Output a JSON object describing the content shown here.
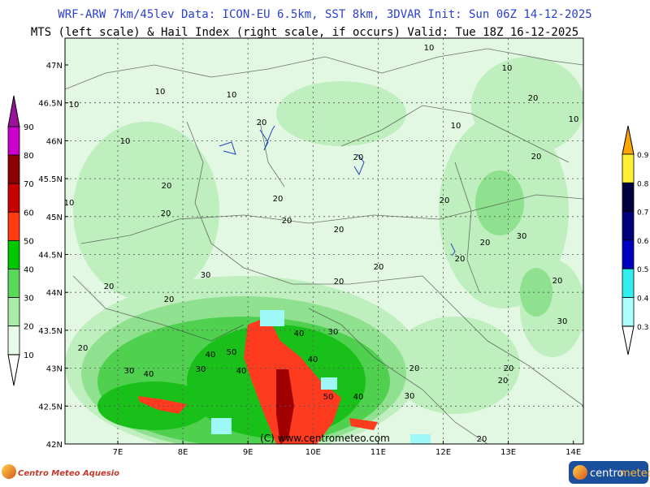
{
  "header": {
    "line1": "WRF-ARW 7km/45lev  Data: ICON-EU 6.5km, SST 8km, 3DVAR   Init: Sun 06Z 14-12-2025",
    "line2": "MTS (left scale) & Hail Index (right scale, if occurs) Valid: Tue 18Z 16-12-2025"
  },
  "map": {
    "lat_labels": [
      "47N",
      "46.5N",
      "46N",
      "45.5N",
      "45N",
      "44.5N",
      "44N",
      "43.5N",
      "43N",
      "42.5N",
      "42N"
    ],
    "lon_labels": [
      "7E",
      "8E",
      "9E",
      "10E",
      "11E",
      "12E",
      "13E",
      "14E"
    ],
    "contour_labels": [
      "10",
      "10",
      "10",
      "10",
      "10",
      "20",
      "10",
      "20",
      "10",
      "10",
      "20",
      "20",
      "10",
      "20",
      "20",
      "20",
      "20",
      "20",
      "20",
      "30",
      "20",
      "20",
      "20",
      "30",
      "20",
      "20",
      "20",
      "20",
      "30",
      "40",
      "30",
      "20",
      "40",
      "50",
      "40",
      "30",
      "40",
      "40",
      "30",
      "20",
      "20",
      "50",
      "40",
      "30",
      "20",
      "20"
    ],
    "watermark": "(C) www.centrometeo.com"
  },
  "left_scale": {
    "labels": [
      "90",
      "80",
      "70",
      "60",
      "50",
      "40",
      "30",
      "20",
      "10"
    ]
  },
  "right_scale": {
    "labels": [
      "0.9",
      "0.8",
      "0.7",
      "0.6",
      "0.5",
      "0.4",
      "0.3"
    ]
  },
  "logos": {
    "left": "Centro Meteo Aquesio",
    "right_a": "centro",
    "right_b": "meteo"
  }
}
